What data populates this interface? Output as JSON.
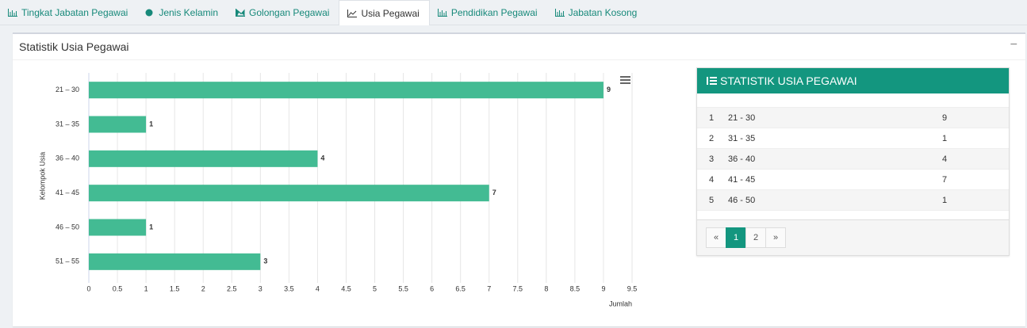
{
  "tabs": [
    "Tingkat Jabatan Pegawai",
    "Jenis Kelamin",
    "Golongan Pegawai",
    "Usia Pegawai",
    "Pendidikan Pegawai",
    "Jabatan Kosong"
  ],
  "panel": {
    "title": "Statistik Usia Pegawai",
    "collapse": "−"
  },
  "chart_data": {
    "type": "hbar",
    "categories": [
      "21 – 30",
      "31 – 35",
      "36 – 40",
      "41 – 45",
      "46 – 50",
      "51 – 55"
    ],
    "values": [
      9,
      1,
      4,
      7,
      1,
      3
    ],
    "color": "#43bb93",
    "x_label": "Jumlah",
    "y_label": "Kelompok Usia",
    "xlim": [
      0,
      9.5
    ],
    "xticks": [
      0,
      0.5,
      1,
      1.5,
      2,
      2.5,
      3,
      3.5,
      4,
      4.5,
      5,
      5.5,
      6,
      6.5,
      7,
      7.5,
      8,
      8.5,
      9,
      9.5
    ],
    "grid": true
  },
  "table": {
    "title": "STATISTIK USIA PEGAWAI",
    "rows": [
      [
        1,
        "21 - 30",
        9
      ],
      [
        2,
        "31 - 35",
        1
      ],
      [
        3,
        "36 - 40",
        4
      ],
      [
        4,
        "41 - 45",
        7
      ],
      [
        5,
        "46 - 50",
        1
      ]
    ],
    "pagination": [
      "«",
      "1",
      "2",
      "»"
    ]
  }
}
